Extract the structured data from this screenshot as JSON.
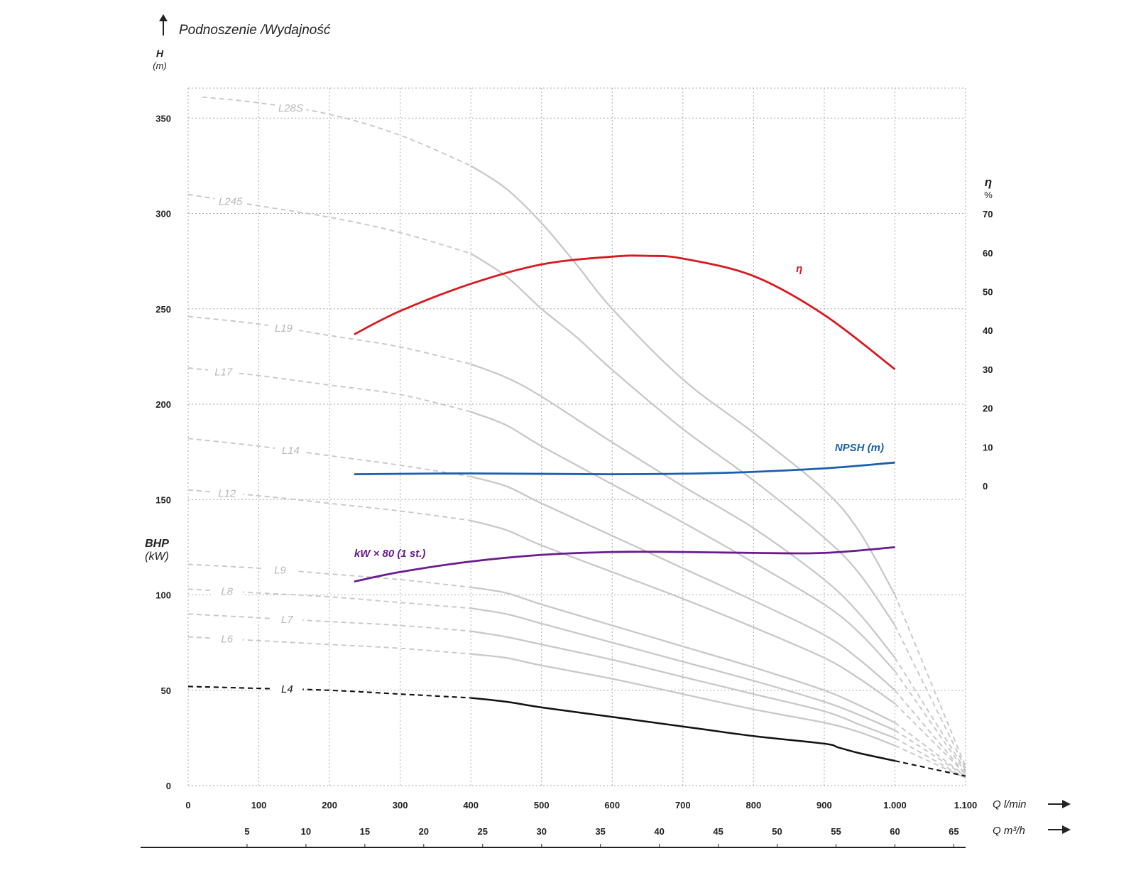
{
  "chart_data": {
    "type": "line",
    "title": "Podnoszenie /Wydajność",
    "ylabel_h": "H",
    "ylabel_h_unit": "(m)",
    "ylabel_bhp": "BHP",
    "ylabel_bhp_unit": "(kW)",
    "ylabel_eta": "η",
    "ylabel_eta_unit": "%",
    "xlabel_lmin": "Q l/min",
    "xlabel_m3h": "Q m³/h",
    "xlim": [
      0,
      1100
    ],
    "ylim": [
      0,
      365
    ],
    "grid": true,
    "x_ticks": [
      {
        "v": 0,
        "label": "0"
      },
      {
        "v": 100,
        "label": "100"
      },
      {
        "v": 200,
        "label": "200"
      },
      {
        "v": 300,
        "label": "300"
      },
      {
        "v": 400,
        "label": "400"
      },
      {
        "v": 500,
        "label": "500"
      },
      {
        "v": 600,
        "label": "600"
      },
      {
        "v": 700,
        "label": "700"
      },
      {
        "v": 800,
        "label": "800"
      },
      {
        "v": 900,
        "label": "900"
      },
      {
        "v": 1000,
        "label": "1.000"
      },
      {
        "v": 1100,
        "label": "1.100"
      }
    ],
    "x2_ticks": [
      {
        "v": 5,
        "label": "5"
      },
      {
        "v": 10,
        "label": "10"
      },
      {
        "v": 15,
        "label": "15"
      },
      {
        "v": 20,
        "label": "20"
      },
      {
        "v": 25,
        "label": "25"
      },
      {
        "v": 30,
        "label": "30"
      },
      {
        "v": 35,
        "label": "35"
      },
      {
        "v": 40,
        "label": "40"
      },
      {
        "v": 45,
        "label": "45"
      },
      {
        "v": 50,
        "label": "50"
      },
      {
        "v": 55,
        "label": "55"
      },
      {
        "v": 60,
        "label": "60"
      },
      {
        "v": 65,
        "label": "65"
      }
    ],
    "y_ticks": [
      {
        "v": 0,
        "label": "0"
      },
      {
        "v": 50,
        "label": "50"
      },
      {
        "v": 100,
        "label": "100"
      },
      {
        "v": 150,
        "label": "150"
      },
      {
        "v": 200,
        "label": "200"
      },
      {
        "v": 250,
        "label": "250"
      },
      {
        "v": 300,
        "label": "300"
      },
      {
        "v": 350,
        "label": "350"
      }
    ],
    "eta_ticks": [
      {
        "v": 0,
        "label": "0"
      },
      {
        "v": 10,
        "label": "10"
      },
      {
        "v": 20,
        "label": "20"
      },
      {
        "v": 30,
        "label": "30"
      },
      {
        "v": 40,
        "label": "40"
      },
      {
        "v": 50,
        "label": "50"
      },
      {
        "v": 60,
        "label": "60"
      },
      {
        "v": 70,
        "label": "70"
      }
    ],
    "series": [
      {
        "name": "L28S",
        "color": "#c8c8c8",
        "label_at": [
          145,
          355
        ],
        "solid_from": 400,
        "solid_to": 1000,
        "points": [
          [
            20,
            361
          ],
          [
            100,
            358
          ],
          [
            200,
            352
          ],
          [
            300,
            341
          ],
          [
            400,
            325
          ],
          [
            450,
            313
          ],
          [
            500,
            295
          ],
          [
            550,
            273
          ],
          [
            600,
            250
          ],
          [
            700,
            213
          ],
          [
            800,
            185
          ],
          [
            900,
            155
          ],
          [
            950,
            133
          ],
          [
            1000,
            100
          ],
          [
            1100,
            10
          ]
        ]
      },
      {
        "name": "L245",
        "color": "#c8c8c8",
        "label_at": [
          60,
          305
        ],
        "solid_from": 400,
        "solid_to": 1000,
        "points": [
          [
            0,
            310
          ],
          [
            100,
            304
          ],
          [
            200,
            298
          ],
          [
            300,
            290
          ],
          [
            400,
            279
          ],
          [
            450,
            267
          ],
          [
            500,
            250
          ],
          [
            550,
            235
          ],
          [
            600,
            218
          ],
          [
            700,
            187
          ],
          [
            800,
            160
          ],
          [
            900,
            130
          ],
          [
            950,
            111
          ],
          [
            1000,
            84
          ],
          [
            1100,
            9
          ]
        ]
      },
      {
        "name": "L19",
        "color": "#c8c8c8",
        "label_at": [
          135,
          240
        ],
        "solid_from": 400,
        "solid_to": 1000,
        "points": [
          [
            0,
            246
          ],
          [
            100,
            242
          ],
          [
            200,
            236
          ],
          [
            300,
            230
          ],
          [
            400,
            221
          ],
          [
            450,
            214
          ],
          [
            500,
            204
          ],
          [
            600,
            180
          ],
          [
            700,
            157
          ],
          [
            800,
            135
          ],
          [
            900,
            108
          ],
          [
            950,
            90
          ],
          [
            1000,
            67
          ],
          [
            1100,
            8
          ]
        ]
      },
      {
        "name": "L17",
        "color": "#c8c8c8",
        "label_at": [
          50,
          212
        ],
        "solid_from": 400,
        "solid_to": 1000,
        "points": [
          [
            0,
            219
          ],
          [
            100,
            215
          ],
          [
            200,
            210
          ],
          [
            300,
            205
          ],
          [
            400,
            196
          ],
          [
            450,
            189
          ],
          [
            500,
            178
          ],
          [
            600,
            158
          ],
          [
            700,
            138
          ],
          [
            800,
            117
          ],
          [
            900,
            95
          ],
          [
            950,
            80
          ],
          [
            1000,
            60
          ],
          [
            1100,
            7
          ]
        ]
      },
      {
        "name": "L14",
        "color": "#c8c8c8",
        "label_at": [
          145,
          175
        ],
        "solid_from": 400,
        "solid_to": 1000,
        "points": [
          [
            0,
            182
          ],
          [
            100,
            178
          ],
          [
            200,
            173
          ],
          [
            300,
            168
          ],
          [
            400,
            162
          ],
          [
            450,
            157
          ],
          [
            500,
            148
          ],
          [
            600,
            131
          ],
          [
            700,
            114
          ],
          [
            800,
            97
          ],
          [
            900,
            79
          ],
          [
            950,
            66
          ],
          [
            1000,
            50
          ],
          [
            1100,
            6
          ]
        ]
      },
      {
        "name": "L12",
        "color": "#c8c8c8",
        "label_at": [
          55,
          150
        ],
        "solid_from": 400,
        "solid_to": 1000,
        "points": [
          [
            0,
            155
          ],
          [
            100,
            152
          ],
          [
            200,
            148
          ],
          [
            300,
            144
          ],
          [
            400,
            139
          ],
          [
            450,
            134
          ],
          [
            500,
            126
          ],
          [
            600,
            112
          ],
          [
            700,
            98
          ],
          [
            800,
            83
          ],
          [
            900,
            67
          ],
          [
            950,
            56
          ],
          [
            1000,
            43
          ],
          [
            1100,
            6
          ]
        ]
      },
      {
        "name": "L9",
        "color": "#c8c8c8",
        "label_at": [
          130,
          112
        ],
        "solid_from": 400,
        "solid_to": 1000,
        "points": [
          [
            0,
            116
          ],
          [
            100,
            114
          ],
          [
            200,
            111
          ],
          [
            300,
            108
          ],
          [
            400,
            104
          ],
          [
            450,
            101
          ],
          [
            500,
            95
          ],
          [
            600,
            84
          ],
          [
            700,
            73
          ],
          [
            800,
            62
          ],
          [
            900,
            50
          ],
          [
            950,
            42
          ],
          [
            1000,
            33
          ],
          [
            1100,
            5
          ]
        ]
      },
      {
        "name": "L8",
        "color": "#c8c8c8",
        "label_at": [
          55,
          102
        ],
        "solid_from": 400,
        "solid_to": 1000,
        "points": [
          [
            0,
            103
          ],
          [
            100,
            101
          ],
          [
            200,
            99
          ],
          [
            300,
            96
          ],
          [
            400,
            93
          ],
          [
            450,
            90
          ],
          [
            500,
            85
          ],
          [
            600,
            75
          ],
          [
            700,
            65
          ],
          [
            800,
            55
          ],
          [
            900,
            44
          ],
          [
            950,
            37
          ],
          [
            1000,
            29
          ],
          [
            1100,
            5
          ]
        ]
      },
      {
        "name": "L7",
        "color": "#c8c8c8",
        "label_at": [
          140,
          88
        ],
        "solid_from": 400,
        "solid_to": 1000,
        "points": [
          [
            0,
            90
          ],
          [
            100,
            88
          ],
          [
            200,
            86
          ],
          [
            300,
            84
          ],
          [
            400,
            81
          ],
          [
            450,
            78
          ],
          [
            500,
            74
          ],
          [
            600,
            66
          ],
          [
            700,
            57
          ],
          [
            800,
            48
          ],
          [
            900,
            39
          ],
          [
            950,
            32
          ],
          [
            1000,
            25
          ],
          [
            1100,
            4
          ]
        ]
      },
      {
        "name": "L6",
        "color": "#c8c8c8",
        "label_at": [
          55,
          77
        ],
        "solid_from": 400,
        "solid_to": 1000,
        "points": [
          [
            0,
            78
          ],
          [
            100,
            76
          ],
          [
            200,
            74
          ],
          [
            300,
            72
          ],
          [
            400,
            69
          ],
          [
            450,
            67
          ],
          [
            500,
            63
          ],
          [
            600,
            56
          ],
          [
            700,
            48
          ],
          [
            800,
            40
          ],
          [
            900,
            33
          ],
          [
            950,
            28
          ],
          [
            1000,
            21
          ],
          [
            1100,
            4
          ]
        ]
      },
      {
        "name": "L4",
        "color": "#111111",
        "label_at": [
          140,
          51
        ],
        "solid_from": 400,
        "solid_to": 1000,
        "points": [
          [
            0,
            52
          ],
          [
            100,
            51
          ],
          [
            200,
            50
          ],
          [
            300,
            48
          ],
          [
            400,
            46
          ],
          [
            450,
            44
          ],
          [
            500,
            41
          ],
          [
            600,
            36
          ],
          [
            700,
            31
          ],
          [
            800,
            26
          ],
          [
            900,
            22
          ],
          [
            920,
            20
          ],
          [
            950,
            17
          ],
          [
            1000,
            13
          ],
          [
            1100,
            5
          ]
        ]
      },
      {
        "name": "η",
        "color": "#d71920",
        "axis": "eta",
        "label_at": [
          860,
          55
        ],
        "points": [
          [
            235,
            39
          ],
          [
            300,
            45
          ],
          [
            400,
            52
          ],
          [
            500,
            57
          ],
          [
            600,
            59
          ],
          [
            650,
            59.2
          ],
          [
            700,
            58.5
          ],
          [
            800,
            54
          ],
          [
            900,
            44
          ],
          [
            1000,
            30
          ]
        ]
      },
      {
        "name": "NPSH (m)",
        "color": "#1a5fad",
        "axis": "eta",
        "label_at": [
          915,
          9
        ],
        "points": [
          [
            235,
            3
          ],
          [
            400,
            3.2
          ],
          [
            600,
            3
          ],
          [
            750,
            3.3
          ],
          [
            900,
            4.5
          ],
          [
            1000,
            6
          ]
        ]
      },
      {
        "name": "kW × 80 (1 st.)",
        "color": "#6a1b8f",
        "axis": "h",
        "label_at": [
          235,
          120
        ],
        "points": [
          [
            235,
            107
          ],
          [
            300,
            112
          ],
          [
            400,
            117.5
          ],
          [
            500,
            121
          ],
          [
            600,
            122.5
          ],
          [
            700,
            122.5
          ],
          [
            800,
            122
          ],
          [
            900,
            122
          ],
          [
            1000,
            125
          ]
        ]
      }
    ]
  }
}
